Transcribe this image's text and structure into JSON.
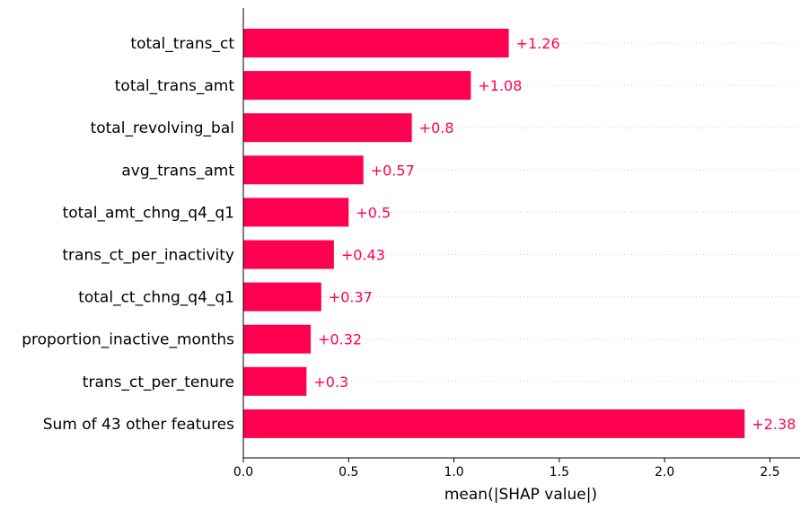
{
  "chart_data": {
    "type": "bar",
    "orientation": "horizontal",
    "categories": [
      "total_trans_ct",
      "total_trans_amt",
      "total_revolving_bal",
      "avg_trans_amt",
      "total_amt_chng_q4_q1",
      "trans_ct_per_inactivity",
      "total_ct_chng_q4_q1",
      "proportion_inactive_months",
      "trans_ct_per_tenure",
      "Sum of 43 other features"
    ],
    "values": [
      1.26,
      1.08,
      0.8,
      0.57,
      0.5,
      0.43,
      0.37,
      0.32,
      0.3,
      2.38
    ],
    "value_labels": [
      "+1.26",
      "+1.08",
      "+0.8",
      "+0.57",
      "+0.5",
      "+0.43",
      "+0.37",
      "+0.32",
      "+0.3",
      "+2.38"
    ],
    "xlabel": "mean(|SHAP value|)",
    "ylabel": "",
    "title": "",
    "xlim": [
      0,
      2.62
    ],
    "xticks": [
      0.0,
      0.5,
      1.0,
      1.5,
      2.0,
      2.5
    ],
    "xtick_labels": [
      "0.0",
      "0.5",
      "1.0",
      "1.5",
      "2.0",
      "2.5"
    ],
    "grid": "dotted horizontal guide lines per row",
    "bar_color": "#ff0051",
    "label_color": "#ff0051",
    "legend": "none"
  }
}
